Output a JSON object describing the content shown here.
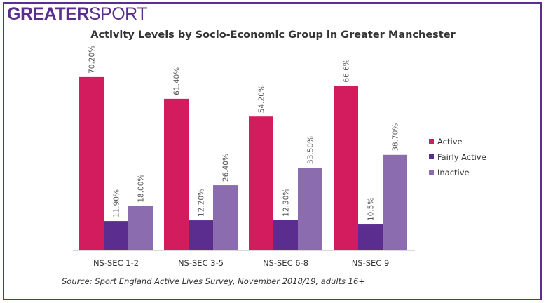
{
  "logo": {
    "bold": "GREATER",
    "light": "SPORT"
  },
  "chart_data": {
    "type": "bar",
    "title": "Activity Levels by Socio-Economic Group in Greater Manchester",
    "categories": [
      "NS-SEC 1-2",
      "NS-SEC 3-5",
      "NS-SEC 6-8",
      "NS-SEC 9"
    ],
    "series": [
      {
        "name": "Active",
        "color": "#d21c5d",
        "values": [
          70.2,
          61.4,
          54.2,
          66.6
        ],
        "labels": [
          "70.20%",
          "61.40%",
          "54.20%",
          "66.6%"
        ]
      },
      {
        "name": "Fairly Active",
        "color": "#5b2d8e",
        "values": [
          11.9,
          12.2,
          12.3,
          10.5
        ],
        "labels": [
          "11.90%",
          "12.20%",
          "12.30%",
          "10.5%"
        ]
      },
      {
        "name": "Inactive",
        "color": "#8b6caf",
        "values": [
          18.0,
          26.4,
          33.5,
          38.7
        ],
        "labels": [
          "18.00%",
          "26.40%",
          "33.50%",
          "38.70%"
        ]
      }
    ],
    "ylim": [
      0,
      75
    ],
    "grid": false,
    "legend": "right",
    "source": "Source: Sport England Active Lives Survey, November 2018/19, adults 16+"
  }
}
